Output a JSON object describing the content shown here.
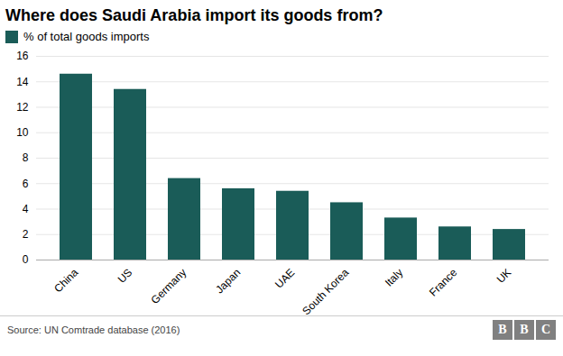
{
  "chart_data": {
    "type": "bar",
    "title": "Where does Saudi Arabia import its goods from?",
    "categories": [
      "China",
      "US",
      "Germany",
      "Japan",
      "UAE",
      "South Korea",
      "Italy",
      "France",
      "UK"
    ],
    "series": [
      {
        "name": "% of total goods imports",
        "color": "#1a5c58",
        "values": [
          14.6,
          13.4,
          6.4,
          5.6,
          5.4,
          4.5,
          3.3,
          2.6,
          2.4
        ]
      }
    ],
    "ylim": [
      0,
      16
    ],
    "yticks": [
      0,
      2,
      4,
      6,
      8,
      10,
      12,
      14,
      16
    ],
    "grid": true,
    "legend": "top",
    "annotations": [
      "Source: UN Comtrade database (2016)",
      "BBC"
    ]
  }
}
